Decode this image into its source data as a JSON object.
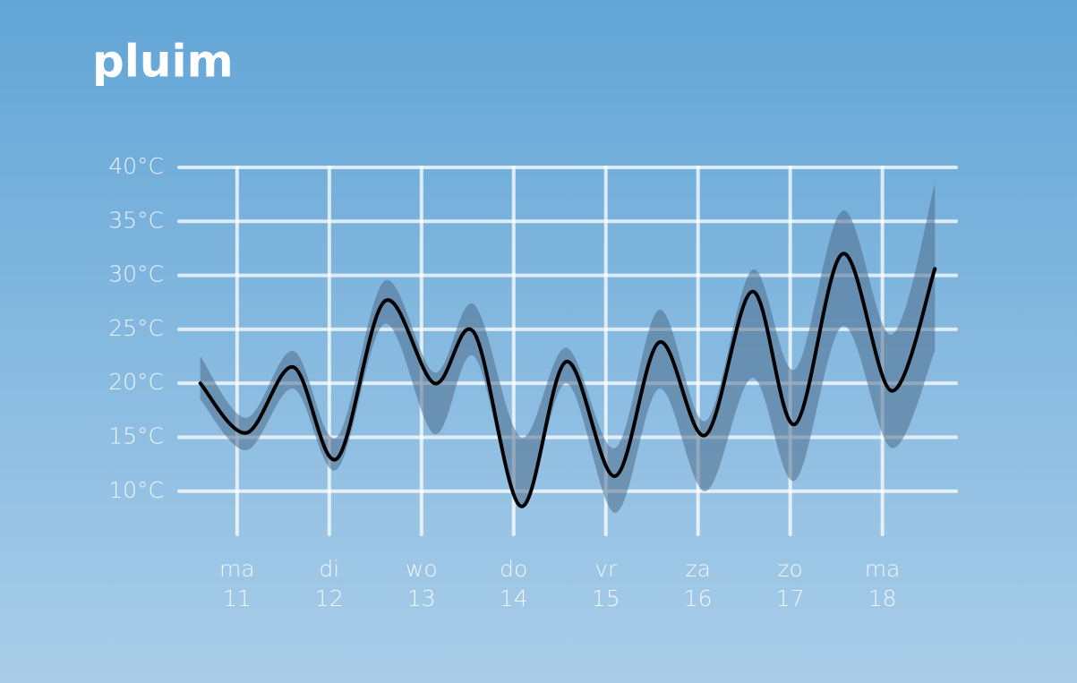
{
  "chart_data": {
    "type": "plume",
    "title": "pluim",
    "x": [
      10.6,
      11.1,
      11.61,
      12.08,
      12.6,
      13.14,
      13.57,
      14.08,
      14.57,
      15.1,
      15.58,
      16.08,
      16.59,
      17.05,
      17.57,
      18.1,
      18.57
    ],
    "values": [
      20.0,
      15.4,
      21.5,
      13.0,
      27.6,
      20.0,
      24.7,
      8.6,
      22.0,
      11.4,
      23.8,
      15.2,
      28.5,
      16.2,
      32.0,
      19.3,
      30.6
    ],
    "low": [
      18.5,
      13.8,
      19.5,
      12.0,
      25.5,
      15.3,
      22.5,
      8.5,
      20.0,
      8.0,
      19.5,
      10.0,
      20.5,
      11.0,
      25.3,
      14.0,
      23.0
    ],
    "high": [
      22.5,
      16.8,
      23.0,
      15.0,
      29.5,
      21.0,
      27.3,
      15.0,
      23.3,
      14.0,
      26.8,
      16.5,
      30.5,
      21.3,
      36.0,
      24.5,
      38.5
    ],
    "color": "#000000",
    "band_color": "#4f6e8c",
    "xlim": [
      10.37,
      18.8
    ],
    "ylim": [
      6,
      40
    ],
    "xticks": [
      {
        "value": 11,
        "label": "ma"
      },
      {
        "value": 12,
        "label": "di"
      },
      {
        "value": 13,
        "label": "wo"
      },
      {
        "value": 14,
        "label": "do"
      },
      {
        "value": 15,
        "label": "vr"
      },
      {
        "value": 16,
        "label": "za"
      },
      {
        "value": 17,
        "label": "zo"
      },
      {
        "value": 18,
        "label": "ma"
      }
    ],
    "yticks": [
      {
        "value": 10,
        "label": "10°C"
      },
      {
        "value": 15,
        "label": "15°C"
      },
      {
        "value": 20,
        "label": "20°C"
      },
      {
        "value": 25,
        "label": "25°C"
      },
      {
        "value": 30,
        "label": "30°C"
      },
      {
        "value": 35,
        "label": "35°C"
      },
      {
        "value": 40,
        "label": "40°C"
      }
    ],
    "grid": true
  }
}
